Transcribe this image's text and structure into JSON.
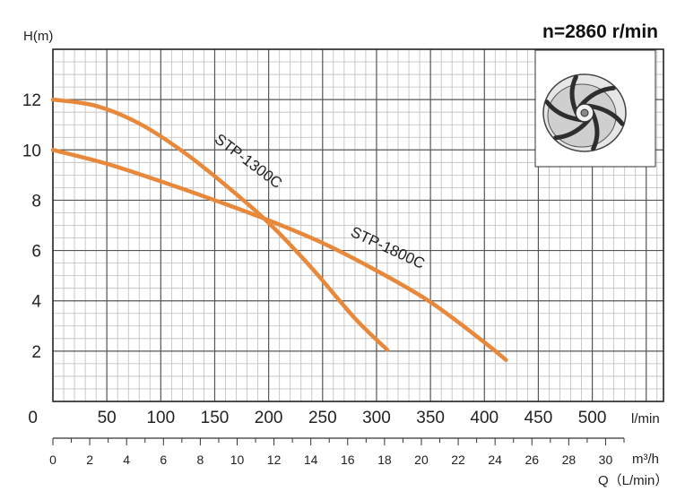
{
  "chart_data": {
    "type": "line",
    "title": "n=2860 r/min",
    "ylabel": "H(m)",
    "xlabel_lmin": "l/min",
    "xlabel_m3h": "m³/h",
    "xlabel_q": "Q（L/min）",
    "origin_label": "0",
    "ylim": [
      0,
      14
    ],
    "xlim_lmin": [
      0,
      566
    ],
    "y_ticks": [
      "2",
      "4",
      "6",
      "8",
      "10",
      "12"
    ],
    "x_ticks_lmin": [
      "50",
      "100",
      "150",
      "200",
      "250",
      "300",
      "350",
      "400",
      "450",
      "500"
    ],
    "x_ticks_m3h": [
      "0",
      "2",
      "4",
      "6",
      "8",
      "10",
      "12",
      "14",
      "16",
      "18",
      "20",
      "22",
      "24",
      "26",
      "28",
      "30"
    ],
    "grid": true,
    "series": [
      {
        "name": "STP-1300C",
        "color": "#e8883a",
        "x": [
          0,
          40,
          80,
          120,
          160,
          200,
          240,
          280,
          310
        ],
        "y": [
          12,
          11.75,
          11.05,
          9.95,
          8.6,
          7.1,
          5.3,
          3.3,
          2.05
        ]
      },
      {
        "name": "STP-1800C",
        "color": "#e8883a",
        "x": [
          0,
          50,
          100,
          150,
          200,
          250,
          300,
          350,
          400,
          420
        ],
        "y": [
          10,
          9.45,
          8.75,
          8.0,
          7.2,
          6.3,
          5.2,
          3.95,
          2.35,
          1.65
        ]
      }
    ],
    "inset_icon": "impeller-icon"
  }
}
